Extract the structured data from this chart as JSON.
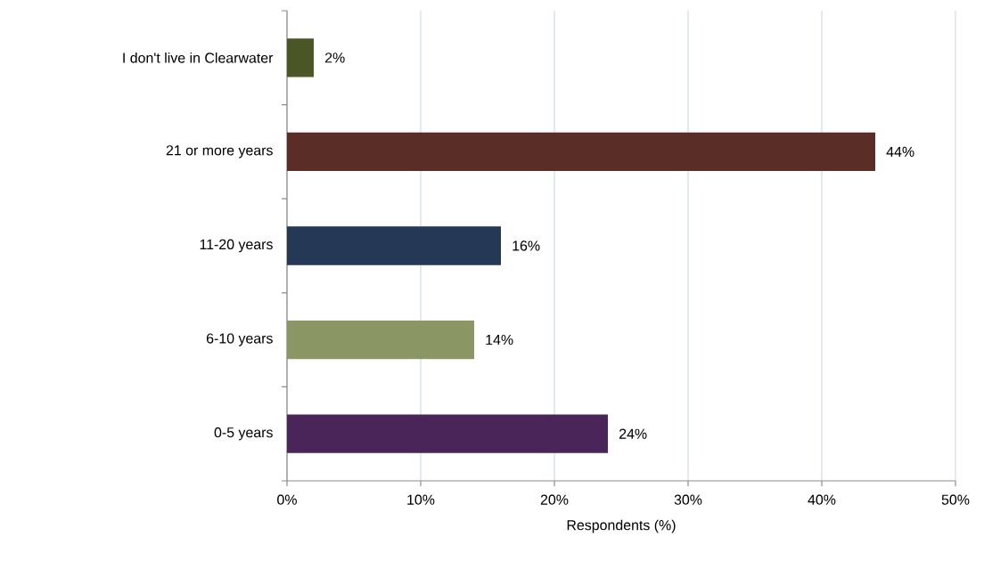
{
  "chart_data": {
    "type": "bar",
    "orientation": "horizontal",
    "xlabel": "Respondents (%)",
    "categories": [
      "I don't live in Clearwater",
      "21 or more years",
      "11-20 years",
      "6-10 years",
      "0-5 years"
    ],
    "values": [
      2,
      44,
      16,
      14,
      24
    ],
    "colors": [
      "#4a5626",
      "#5a2d27",
      "#253956",
      "#8a9664",
      "#4a2559"
    ],
    "value_labels": [
      "2%",
      "44%",
      "16%",
      "14%",
      "24%"
    ],
    "xlim": [
      0,
      50
    ],
    "xticks": [
      {
        "value": 0,
        "label": "0%"
      },
      {
        "value": 10,
        "label": "10%"
      },
      {
        "value": 20,
        "label": "20%"
      },
      {
        "value": 30,
        "label": "30%"
      },
      {
        "value": 40,
        "label": "40%"
      },
      {
        "value": 50,
        "label": "50%"
      }
    ],
    "grid": "x"
  }
}
